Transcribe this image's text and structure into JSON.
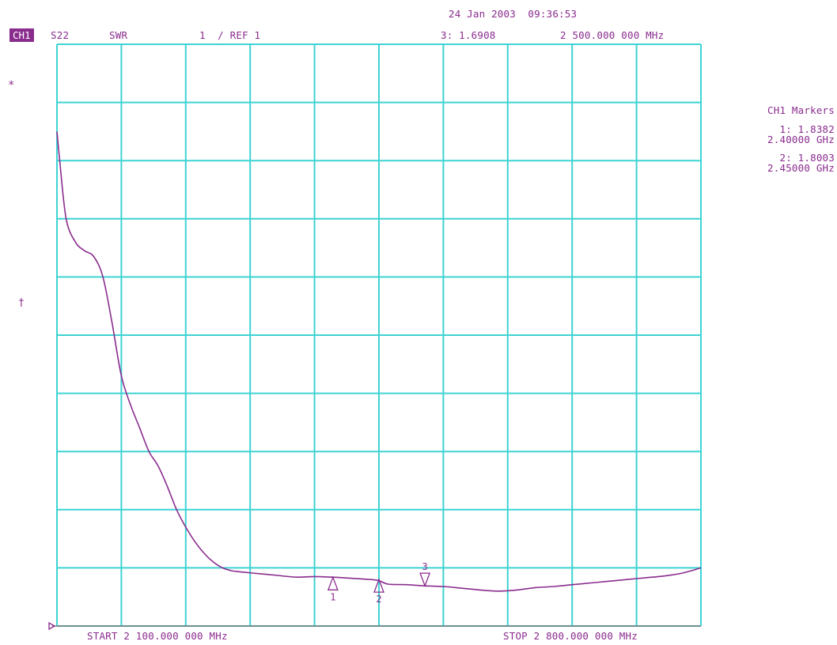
{
  "header": {
    "datetime": "24 Jan 2003  09:36:53",
    "channel_badge": "CH1",
    "param": "S22",
    "format": "SWR",
    "scale_ref": "1  / REF 1",
    "active_marker": "3: 1.6908",
    "marker_freq": "2 500.000 000 MHz"
  },
  "left_symbols": {
    "star": "*",
    "ref_arrow": "†"
  },
  "marker_panel": {
    "title": "CH1 Markers",
    "markers": [
      {
        "value": "1: 1.8382",
        "freq": "2.40000 GHz"
      },
      {
        "value": "2: 1.8003",
        "freq": "2.45000 GHz"
      }
    ]
  },
  "footer": {
    "start": "START 2 100.000 000 MHz",
    "stop": "STOP 2 800.000 000 MHz"
  },
  "colors": {
    "grid": "#3fd3d3",
    "trace": "#8a2c8e",
    "text": "#8a2c8e"
  },
  "chart_data": {
    "type": "line",
    "title": "",
    "xlabel": "",
    "ylabel": "",
    "x_unit": "MHz",
    "xlim": [
      2100,
      2800
    ],
    "ylim": [
      1,
      11
    ],
    "grid": true,
    "y_divisions": 10,
    "x_divisions": 10,
    "series": [
      {
        "name": "S22",
        "x": [
          2100,
          2103,
          2110,
          2120,
          2130,
          2140,
          2150,
          2160,
          2170,
          2180,
          2190,
          2200,
          2210,
          2220,
          2230,
          2240,
          2250,
          2260,
          2270,
          2280,
          2290,
          2300,
          2320,
          2340,
          2360,
          2380,
          2400,
          2420,
          2440,
          2450,
          2460,
          2480,
          2500,
          2520,
          2540,
          2560,
          2580,
          2600,
          2620,
          2640,
          2660,
          2680,
          2700,
          2720,
          2740,
          2760,
          2780,
          2800
        ],
        "y": [
          9.5,
          9.0,
          8.0,
          7.6,
          7.45,
          7.35,
          7.0,
          6.2,
          5.3,
          4.8,
          4.4,
          4.0,
          3.75,
          3.4,
          3.0,
          2.7,
          2.45,
          2.25,
          2.1,
          2.0,
          1.95,
          1.93,
          1.9,
          1.87,
          1.84,
          1.85,
          1.84,
          1.82,
          1.8,
          1.78,
          1.72,
          1.71,
          1.69,
          1.68,
          1.65,
          1.62,
          1.6,
          1.62,
          1.66,
          1.68,
          1.71,
          1.74,
          1.77,
          1.8,
          1.83,
          1.86,
          1.91,
          2.0
        ]
      }
    ],
    "markers": [
      {
        "label": "1",
        "x": 2400,
        "y": 1.8382,
        "direction": "up"
      },
      {
        "label": "2",
        "x": 2450,
        "y": 1.8003,
        "direction": "up"
      },
      {
        "label": "3",
        "x": 2500,
        "y": 1.6908,
        "direction": "down"
      }
    ]
  }
}
